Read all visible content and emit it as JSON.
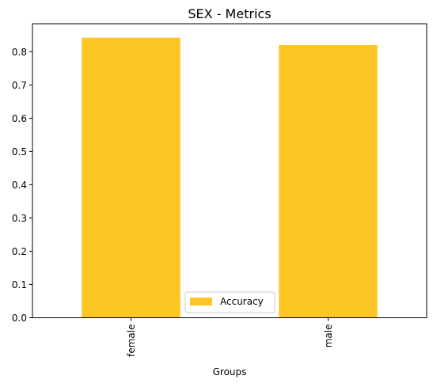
{
  "chart_data": {
    "type": "bar",
    "title": "SEX - Metrics",
    "xlabel": "Groups",
    "ylabel": "",
    "categories": [
      "female",
      "male"
    ],
    "series": [
      {
        "name": "Accuracy",
        "values": [
          0.842,
          0.82
        ],
        "color": "#fec625"
      }
    ],
    "ylim": [
      0,
      0.884
    ],
    "yticks": [
      "0.0",
      "0.1",
      "0.2",
      "0.3",
      "0.4",
      "0.5",
      "0.6",
      "0.7",
      "0.8"
    ],
    "grid": false,
    "legend": "bottom-center",
    "x_tick_rotation": "vertical"
  }
}
